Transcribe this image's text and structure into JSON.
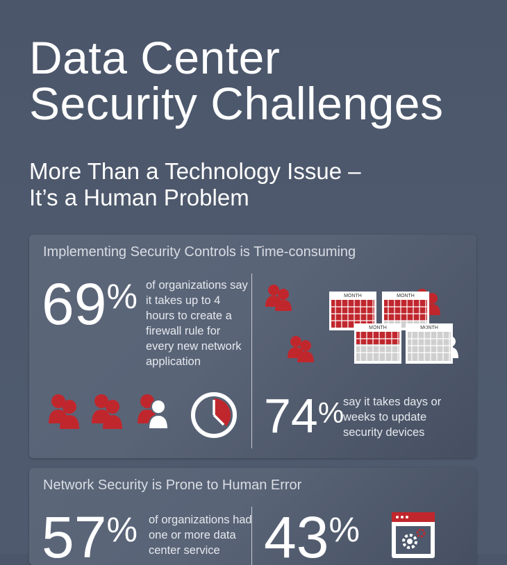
{
  "title_line1": "Data Center",
  "title_line2": "Security Challenges",
  "subtitle_line1": "More Than a Technology Issue –",
  "subtitle_line2": "It’s a Human Problem",
  "colors": {
    "accent_red": "#c0272d",
    "background": "#4e596d",
    "white": "#ffffff"
  },
  "panel1": {
    "heading": "Implementing Security Controls is Time-consuming",
    "stat1": {
      "value": "69",
      "symbol": "%",
      "text": "of organizations say it takes up to 4 hours to create a firewall rule for every new network application"
    },
    "calendar_label": "MONTH",
    "stat2": {
      "value": "74",
      "symbol": "%",
      "text": "say it takes days or weeks to update security devices"
    }
  },
  "panel2": {
    "heading": "Network Security is Prone to Human Error",
    "stat1": {
      "value": "57",
      "symbol": "%",
      "text": "of organizations had one or more data center service"
    },
    "stat2": {
      "value": "43",
      "symbol": "%"
    }
  },
  "icons": [
    "people-icon",
    "calendar-icon",
    "clock-icon",
    "browser-gear-icon"
  ]
}
